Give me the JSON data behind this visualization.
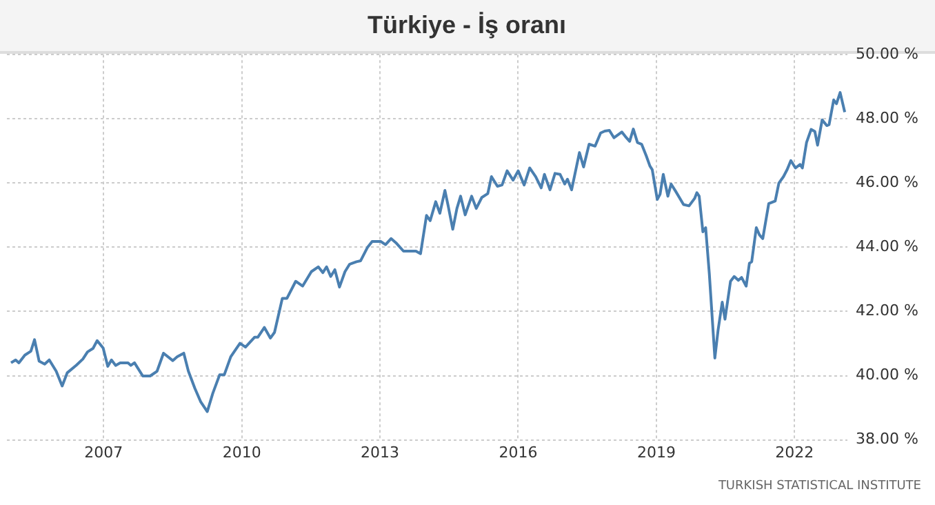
{
  "chart_data": {
    "type": "line",
    "title": "Türkiye - İş oranı",
    "annotations": [
      "TURKISH STATISTICAL INSTITUTE"
    ],
    "x": [
      2004.99,
      2005.09,
      2005.16,
      2005.29,
      2005.42,
      2005.5,
      2005.6,
      2005.72,
      2005.82,
      2005.97,
      2006.1,
      2006.21,
      2006.41,
      2006.55,
      2006.65,
      2006.77,
      2006.86,
      2006.99,
      2007.09,
      2007.17,
      2007.26,
      2007.36,
      2007.53,
      2007.59,
      2007.67,
      2007.85,
      2008.01,
      2008.16,
      2008.3,
      2008.5,
      2008.6,
      2008.74,
      2008.84,
      2008.98,
      2009.11,
      2009.25,
      2009.37,
      2009.52,
      2009.62,
      2009.76,
      2009.96,
      2010.08,
      2010.28,
      2010.35,
      2010.49,
      2010.62,
      2010.71,
      2010.88,
      2010.98,
      2011.17,
      2011.32,
      2011.51,
      2011.66,
      2011.76,
      2011.84,
      2011.93,
      2012.02,
      2012.12,
      2012.24,
      2012.34,
      2012.49,
      2012.58,
      2012.73,
      2012.83,
      2013.02,
      2013.12,
      2013.24,
      2013.36,
      2013.51,
      2013.65,
      2013.78,
      2013.88,
      2014.01,
      2014.09,
      2014.21,
      2014.3,
      2014.41,
      2014.48,
      2014.58,
      2014.67,
      2014.75,
      2014.85,
      2014.99,
      2015.09,
      2015.21,
      2015.34,
      2015.42,
      2015.55,
      2015.65,
      2015.76,
      2015.89,
      2016.0,
      2016.13,
      2016.25,
      2016.38,
      2016.5,
      2016.57,
      2016.69,
      2016.8,
      2016.91,
      2017.01,
      2017.07,
      2017.16,
      2017.33,
      2017.42,
      2017.54,
      2017.67,
      2017.79,
      2017.88,
      2017.98,
      2018.08,
      2018.25,
      2018.35,
      2018.42,
      2018.5,
      2018.59,
      2018.68,
      2018.78,
      2018.86,
      2018.91,
      2019.02,
      2019.08,
      2019.15,
      2019.25,
      2019.32,
      2019.42,
      2019.59,
      2019.71,
      2019.83,
      2019.88,
      2019.93,
      2020.01,
      2020.07,
      2020.15,
      2020.27,
      2020.34,
      2020.43,
      2020.49,
      2020.61,
      2020.69,
      2020.78,
      2020.85,
      2020.95,
      2021.02,
      2021.07,
      2021.17,
      2021.24,
      2021.31,
      2021.44,
      2021.58,
      2021.66,
      2021.76,
      2021.84,
      2021.92,
      2022.02,
      2022.12,
      2022.17,
      2022.26,
      2022.36,
      2022.44,
      2022.5,
      2022.6,
      2022.7,
      2022.75,
      2022.85,
      2022.91,
      2022.99,
      2023.09
    ],
    "values": [
      40.4,
      40.49,
      40.4,
      40.64,
      40.76,
      41.12,
      40.45,
      40.36,
      40.49,
      40.14,
      39.68,
      40.09,
      40.33,
      40.52,
      40.74,
      40.85,
      41.09,
      40.86,
      40.29,
      40.49,
      40.32,
      40.4,
      40.4,
      40.32,
      40.4,
      39.99,
      39.99,
      40.14,
      40.7,
      40.47,
      40.59,
      40.7,
      40.14,
      39.61,
      39.18,
      38.88,
      39.45,
      40.03,
      40.03,
      40.59,
      41.01,
      40.89,
      41.2,
      41.2,
      41.5,
      41.17,
      41.35,
      42.41,
      42.41,
      42.94,
      42.79,
      43.24,
      43.39,
      43.21,
      43.39,
      43.09,
      43.3,
      42.76,
      43.24,
      43.47,
      43.55,
      43.58,
      44.0,
      44.18,
      44.18,
      44.08,
      44.27,
      44.12,
      43.88,
      43.88,
      43.88,
      43.8,
      44.99,
      44.83,
      45.42,
      45.06,
      45.77,
      45.29,
      44.56,
      45.21,
      45.59,
      45.01,
      45.59,
      45.21,
      45.55,
      45.67,
      46.2,
      45.9,
      45.94,
      46.38,
      46.09,
      46.38,
      45.94,
      46.47,
      46.2,
      45.85,
      46.27,
      45.79,
      46.3,
      46.27,
      45.97,
      46.12,
      45.79,
      46.95,
      46.5,
      47.21,
      47.15,
      47.56,
      47.62,
      47.64,
      47.41,
      47.59,
      47.41,
      47.3,
      47.68,
      47.26,
      47.21,
      46.85,
      46.53,
      46.42,
      45.49,
      45.65,
      46.27,
      45.59,
      45.97,
      45.74,
      45.33,
      45.29,
      45.52,
      45.7,
      45.59,
      44.48,
      44.61,
      43.17,
      40.55,
      41.42,
      42.29,
      41.76,
      42.94,
      43.09,
      42.97,
      43.06,
      42.79,
      43.5,
      43.55,
      44.61,
      44.38,
      44.27,
      45.36,
      45.44,
      46.0,
      46.2,
      46.42,
      46.7,
      46.47,
      46.58,
      46.47,
      47.26,
      47.67,
      47.61,
      47.18,
      47.97,
      47.79,
      47.82,
      48.59,
      48.47,
      48.82,
      48.21
    ],
    "color": "#4a7fb0",
    "xlim": [
      2004.9,
      2023.15
    ],
    "xticks": [
      2007,
      2010,
      2013,
      2016,
      2019,
      2022
    ],
    "ylim": [
      38,
      50
    ],
    "yticks": [
      {
        "value": 38,
        "label": "38.00 %"
      },
      {
        "value": 40,
        "label": "40.00 %"
      },
      {
        "value": 42,
        "label": "42.00 %"
      },
      {
        "value": 44,
        "label": "44.00 %"
      },
      {
        "value": 46,
        "label": "46.00 %"
      },
      {
        "value": 48,
        "label": "48.00 %"
      },
      {
        "value": 50,
        "label": "50.00 %"
      }
    ],
    "grid": true,
    "legend": false,
    "marker": "none",
    "line_style": "solid"
  }
}
